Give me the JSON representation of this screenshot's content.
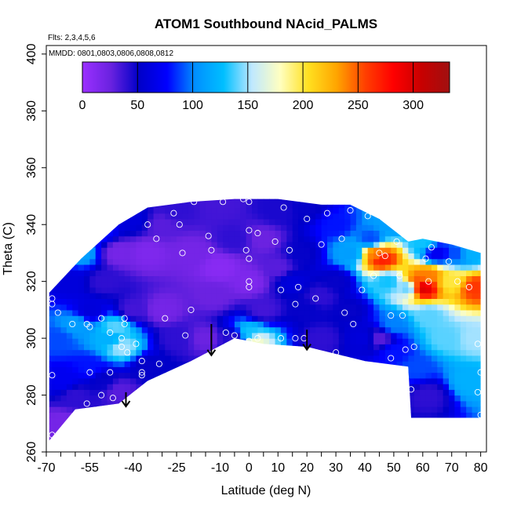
{
  "chart_data": {
    "type": "heatmap",
    "title": "ATOM1 Southbound NAcid_PALMS",
    "subtitle_flights": "Flts: 2,3,4,5,6",
    "subtitle_dates": "MMDD: 0801,0803,0806,0808,0812",
    "xlabel": "Latitude (deg N)",
    "ylabel": "Theta (C)",
    "xlim": [
      -70,
      82
    ],
    "ylim": [
      260,
      403
    ],
    "x_ticks": [
      -70,
      -55,
      -40,
      -25,
      -10,
      0,
      10,
      20,
      30,
      40,
      50,
      60,
      70,
      80
    ],
    "y_ticks": [
      260,
      280,
      300,
      320,
      340,
      360,
      380,
      400
    ],
    "colorbar": {
      "range": [
        0,
        333
      ],
      "ticks": [
        0,
        50,
        100,
        150,
        200,
        250,
        300
      ],
      "colors": [
        "#9b30ff",
        "#6a22e0",
        "#0000c8",
        "#0000ff",
        "#0090ff",
        "#00bfff",
        "#bfe8ff",
        "#ffffc0",
        "#ffe020",
        "#ffa500",
        "#ff4000",
        "#ff0000",
        "#c80000",
        "#a01010"
      ]
    },
    "envelope": [
      [
        -69,
        264
      ],
      [
        -69,
        316
      ],
      [
        -58,
        328
      ],
      [
        -45,
        340
      ],
      [
        -35,
        346
      ],
      [
        -20,
        348
      ],
      [
        -5,
        349
      ],
      [
        10,
        349
      ],
      [
        25,
        347
      ],
      [
        35,
        347
      ],
      [
        45,
        342
      ],
      [
        55,
        334
      ],
      [
        60,
        335
      ],
      [
        70,
        333
      ],
      [
        80,
        330
      ],
      [
        80,
        272
      ],
      [
        56,
        272
      ],
      [
        55,
        290
      ],
      [
        40,
        292
      ],
      [
        20,
        297
      ],
      [
        5,
        298
      ],
      [
        -5,
        300
      ],
      [
        -20,
        292
      ],
      [
        -35,
        285
      ],
      [
        -45,
        277
      ],
      [
        -60,
        275
      ],
      [
        -69,
        264
      ]
    ],
    "field": [
      {
        "x": -62,
        "y": 320,
        "v": 60
      },
      {
        "x": -66,
        "y": 300,
        "v": 90
      },
      {
        "x": -60,
        "y": 305,
        "v": 110
      },
      {
        "x": -64,
        "y": 285,
        "v": 70
      },
      {
        "x": -55,
        "y": 290,
        "v": 80
      },
      {
        "x": -48,
        "y": 300,
        "v": 120
      },
      {
        "x": -46,
        "y": 304,
        "v": 140
      },
      {
        "x": -44,
        "y": 297,
        "v": 150
      },
      {
        "x": -40,
        "y": 310,
        "v": 35
      },
      {
        "x": -45,
        "y": 330,
        "v": 20
      },
      {
        "x": -35,
        "y": 330,
        "v": 15
      },
      {
        "x": -30,
        "y": 340,
        "v": 30
      },
      {
        "x": -20,
        "y": 330,
        "v": 20
      },
      {
        "x": -12,
        "y": 315,
        "v": 25
      },
      {
        "x": -15,
        "y": 300,
        "v": 25
      },
      {
        "x": -5,
        "y": 300,
        "v": 40
      },
      {
        "x": 0,
        "y": 302,
        "v": 130
      },
      {
        "x": 2,
        "y": 299,
        "v": 175
      },
      {
        "x": 5,
        "y": 310,
        "v": 35
      },
      {
        "x": 0,
        "y": 320,
        "v": 15
      },
      {
        "x": -5,
        "y": 335,
        "v": 40
      },
      {
        "x": 5,
        "y": 335,
        "v": 25
      },
      {
        "x": 10,
        "y": 345,
        "v": 45
      },
      {
        "x": 15,
        "y": 320,
        "v": 60
      },
      {
        "x": 18,
        "y": 330,
        "v": 50
      },
      {
        "x": 20,
        "y": 310,
        "v": 50
      },
      {
        "x": 25,
        "y": 300,
        "v": 40
      },
      {
        "x": 30,
        "y": 320,
        "v": 50
      },
      {
        "x": 30,
        "y": 340,
        "v": 80
      },
      {
        "x": 35,
        "y": 330,
        "v": 110
      },
      {
        "x": 40,
        "y": 300,
        "v": 60
      },
      {
        "x": 42,
        "y": 335,
        "v": 90
      },
      {
        "x": 44,
        "y": 330,
        "v": 240
      },
      {
        "x": 46,
        "y": 328,
        "v": 270
      },
      {
        "x": 48,
        "y": 320,
        "v": 130
      },
      {
        "x": 50,
        "y": 305,
        "v": 100
      },
      {
        "x": 55,
        "y": 318,
        "v": 140
      },
      {
        "x": 58,
        "y": 320,
        "v": 250
      },
      {
        "x": 60,
        "y": 318,
        "v": 300
      },
      {
        "x": 62,
        "y": 322,
        "v": 240
      },
      {
        "x": 62,
        "y": 308,
        "v": 140
      },
      {
        "x": 65,
        "y": 330,
        "v": 70
      },
      {
        "x": 68,
        "y": 300,
        "v": 140
      },
      {
        "x": 70,
        "y": 320,
        "v": 200
      },
      {
        "x": 72,
        "y": 330,
        "v": 90
      },
      {
        "x": 78,
        "y": 318,
        "v": 260
      },
      {
        "x": 78,
        "y": 300,
        "v": 150
      },
      {
        "x": 76,
        "y": 285,
        "v": 120
      },
      {
        "x": 62,
        "y": 280,
        "v": 40
      },
      {
        "x": 58,
        "y": 290,
        "v": 90
      },
      {
        "x": 50,
        "y": 295,
        "v": 80
      },
      {
        "x": 45,
        "y": 300,
        "v": 30
      },
      {
        "x": -60,
        "y": 280,
        "v": 40
      },
      {
        "x": -50,
        "y": 285,
        "v": 50
      },
      {
        "x": -45,
        "y": 282,
        "v": 30
      },
      {
        "x": -35,
        "y": 290,
        "v": 50
      },
      {
        "x": -25,
        "y": 300,
        "v": 40
      },
      {
        "x": -65,
        "y": 270,
        "v": 20
      },
      {
        "x": -55,
        "y": 310,
        "v": 60
      },
      {
        "x": -50,
        "y": 320,
        "v": 40
      },
      {
        "x": -58,
        "y": 330,
        "v": 110
      },
      {
        "x": -52,
        "y": 338,
        "v": 80
      },
      {
        "x": -40,
        "y": 342,
        "v": 60
      },
      {
        "x": -25,
        "y": 345,
        "v": 40
      },
      {
        "x": -10,
        "y": 347,
        "v": 35
      },
      {
        "x": 20,
        "y": 346,
        "v": 50
      },
      {
        "x": 50,
        "y": 340,
        "v": 110
      },
      {
        "x": 60,
        "y": 334,
        "v": 130
      },
      {
        "x": 76,
        "y": 330,
        "v": 120
      },
      {
        "x": -30,
        "y": 310,
        "v": 20
      },
      {
        "x": -10,
        "y": 325,
        "v": 10
      },
      {
        "x": 10,
        "y": 325,
        "v": 30
      },
      {
        "x": 25,
        "y": 315,
        "v": 40
      },
      {
        "x": 35,
        "y": 310,
        "v": 50
      }
    ],
    "points": [
      [
        -68,
        314
      ],
      [
        -68,
        312
      ],
      [
        -66,
        309
      ],
      [
        -61,
        305
      ],
      [
        -56,
        305
      ],
      [
        -55,
        304
      ],
      [
        -51,
        307
      ],
      [
        -48,
        302
      ],
      [
        -43,
        305
      ],
      [
        -43,
        307
      ],
      [
        -44,
        300
      ],
      [
        -44,
        297
      ],
      [
        -42,
        295
      ],
      [
        -39,
        298
      ],
      [
        -37,
        292
      ],
      [
        -55,
        288
      ],
      [
        -48,
        288
      ],
      [
        -47,
        279
      ],
      [
        -51,
        280
      ],
      [
        -42,
        278
      ],
      [
        -56,
        277
      ],
      [
        -68,
        287
      ],
      [
        -68,
        266
      ],
      [
        -35,
        340
      ],
      [
        -32,
        335
      ],
      [
        -26,
        344
      ],
      [
        -24,
        340
      ],
      [
        -23,
        330
      ],
      [
        -19,
        348
      ],
      [
        -14,
        336
      ],
      [
        -13,
        331
      ],
      [
        -9,
        348
      ],
      [
        -2,
        349
      ],
      [
        0,
        348
      ],
      [
        0,
        338
      ],
      [
        -1,
        331
      ],
      [
        0,
        328
      ],
      [
        0,
        320
      ],
      [
        0,
        318
      ],
      [
        -5,
        301
      ],
      [
        0,
        299
      ],
      [
        3,
        337
      ],
      [
        9,
        334
      ],
      [
        12,
        346
      ],
      [
        11,
        317
      ],
      [
        14,
        331
      ],
      [
        16,
        312
      ],
      [
        17,
        318
      ],
      [
        20,
        342
      ],
      [
        23,
        314
      ],
      [
        25,
        333
      ],
      [
        27,
        344
      ],
      [
        32,
        335
      ],
      [
        33,
        309
      ],
      [
        35,
        345
      ],
      [
        36,
        305
      ],
      [
        39,
        317
      ],
      [
        41,
        343
      ],
      [
        43,
        322
      ],
      [
        45,
        330
      ],
      [
        47,
        329
      ],
      [
        49,
        308
      ],
      [
        51,
        334
      ],
      [
        52,
        322
      ],
      [
        53,
        308
      ],
      [
        57,
        297
      ],
      [
        61,
        328
      ],
      [
        62,
        320
      ],
      [
        63,
        332
      ],
      [
        69,
        327
      ],
      [
        70,
        335
      ],
      [
        72,
        320
      ],
      [
        76,
        318
      ],
      [
        79,
        298
      ],
      [
        80,
        288
      ],
      [
        79,
        281
      ],
      [
        80,
        273
      ],
      [
        -29,
        307
      ],
      [
        -31,
        291
      ],
      [
        -20,
        310
      ],
      [
        -22,
        301
      ],
      [
        -37,
        288
      ],
      [
        -37,
        287
      ],
      [
        -8,
        302
      ],
      [
        3,
        300
      ],
      [
        11,
        300
      ],
      [
        16,
        300
      ],
      [
        19,
        300
      ],
      [
        30,
        295
      ],
      [
        39,
        290
      ],
      [
        49,
        293
      ],
      [
        54,
        296
      ],
      [
        56,
        282
      ]
    ],
    "arrows": [
      [
        -42.5,
        281,
        276
      ],
      [
        -13,
        305,
        294
      ],
      [
        20,
        303,
        296
      ]
    ]
  }
}
